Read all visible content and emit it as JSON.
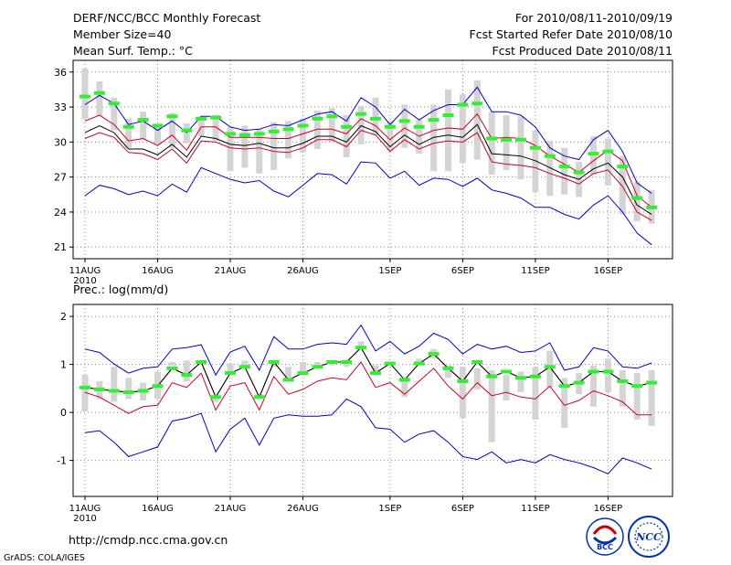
{
  "header": {
    "title_left": "DERF/NCC/BCC Monthly Forecast",
    "member_size": "Member Size=40",
    "variable_label": "Mean Surf. Temp.: °C",
    "period": "For 2010/08/11-2010/09/19",
    "started_refer": "Fcst Started Refer Date 2010/08/10",
    "produced": "Fcst Produced Date 2010/08/11"
  },
  "footer": {
    "url": "http://cmdp.ncc.cma.gov.cn",
    "grads_credit": "GrADS: COLA/IGES",
    "logo_bcc_text": "BCC",
    "logo_ncc_text": "NCC"
  },
  "colors": {
    "frame": "#000000",
    "grid": "#888888",
    "envelope": "#0000cc",
    "spread": "#cc0022",
    "mean": "#000000",
    "box": "#d4d4d4",
    "green": "#33ee33"
  },
  "chart_data": [
    {
      "type": "line",
      "id": "temp",
      "title": "Mean Surf. Temp.: °C",
      "categories": [
        "11AUG",
        "16AUG",
        "21AUG",
        "26AUG",
        "1SEP",
        "6SEP",
        "11SEP",
        "16SEP"
      ],
      "category_day_index": [
        0,
        5,
        10,
        15,
        21,
        26,
        31,
        36
      ],
      "first_label_year": "2010",
      "ylim": [
        20,
        37
      ],
      "yticks": [
        21,
        24,
        27,
        30,
        33,
        36
      ],
      "grid": true,
      "x": [
        0,
        1,
        2,
        3,
        4,
        5,
        6,
        7,
        8,
        9,
        10,
        11,
        12,
        13,
        14,
        15,
        16,
        17,
        18,
        19,
        20,
        21,
        22,
        23,
        24,
        25,
        26,
        27,
        28,
        29,
        30,
        31,
        32,
        33,
        34,
        35,
        36,
        37,
        38,
        39
      ],
      "series": [
        {
          "name": "max",
          "values": [
            33.2,
            34.0,
            33.3,
            31.5,
            31.8,
            31.0,
            31.8,
            30.8,
            32.2,
            32.2,
            31.3,
            31.0,
            31.1,
            31.5,
            31.4,
            31.9,
            32.4,
            32.6,
            31.8,
            33.8,
            33.0,
            31.5,
            32.8,
            31.9,
            32.7,
            33.2,
            33.2,
            34.7,
            32.6,
            32.6,
            32.3,
            31.3,
            29.5,
            28.8,
            28.5,
            30.2,
            31.0,
            29.2,
            26.5,
            25.6
          ]
        },
        {
          "name": "upper",
          "values": [
            31.8,
            32.3,
            31.5,
            30.1,
            30.3,
            29.7,
            30.6,
            29.3,
            31.3,
            31.3,
            30.4,
            30.4,
            30.4,
            30.3,
            30.3,
            30.7,
            31.1,
            31.1,
            30.7,
            32.0,
            31.4,
            30.2,
            31.2,
            30.5,
            31.0,
            31.2,
            31.1,
            32.4,
            30.3,
            30.4,
            30.3,
            29.7,
            28.8,
            28.1,
            27.4,
            28.4,
            29.3,
            28.4,
            25.4,
            24.4
          ]
        },
        {
          "name": "mean",
          "values": [
            30.8,
            31.4,
            30.8,
            29.4,
            29.4,
            28.9,
            29.8,
            28.7,
            30.5,
            30.3,
            29.8,
            29.7,
            29.9,
            29.5,
            29.5,
            29.9,
            30.5,
            30.5,
            30.0,
            31.4,
            30.9,
            29.6,
            30.6,
            29.8,
            30.4,
            30.6,
            30.4,
            31.5,
            29.0,
            28.9,
            28.8,
            28.4,
            27.8,
            27.2,
            26.8,
            27.7,
            28.2,
            27.0,
            24.6,
            23.8
          ]
        },
        {
          "name": "lower",
          "values": [
            30.3,
            30.8,
            30.4,
            29.1,
            29.0,
            28.5,
            29.4,
            28.2,
            30.1,
            30.0,
            29.5,
            29.4,
            29.5,
            29.2,
            29.1,
            29.5,
            30.2,
            30.2,
            29.6,
            31.0,
            30.6,
            29.2,
            30.2,
            29.4,
            29.9,
            30.1,
            30.0,
            30.8,
            28.3,
            28.1,
            28.0,
            27.8,
            27.3,
            26.9,
            26.4,
            27.3,
            27.6,
            26.2,
            24.0,
            23.3
          ]
        },
        {
          "name": "min",
          "values": [
            25.4,
            26.3,
            26.0,
            25.5,
            25.8,
            25.4,
            26.4,
            25.7,
            27.8,
            27.3,
            26.8,
            26.5,
            26.7,
            25.8,
            25.3,
            26.3,
            27.3,
            27.2,
            26.4,
            28.3,
            28.2,
            26.9,
            27.5,
            26.3,
            26.9,
            26.8,
            26.2,
            26.9,
            25.9,
            25.6,
            25.2,
            24.4,
            24.4,
            23.8,
            23.4,
            24.6,
            25.4,
            24.0,
            22.2,
            21.2
          ]
        }
      ],
      "boxes_low": [
        32.0,
        32.2,
        31.0,
        29.5,
        30.2,
        29.8,
        29.5,
        29.9,
        30.5,
        30.1,
        27.5,
        27.8,
        27.3,
        27.6,
        28.6,
        29.1,
        29.4,
        30.0,
        28.7,
        29.8,
        30.6,
        29.2,
        29.5,
        29.0,
        27.5,
        27.5,
        28.2,
        28.5,
        27.2,
        27.6,
        26.8,
        25.7,
        25.4,
        25.5,
        25.3,
        27.2,
        26.3,
        23.8,
        23.2,
        23.0
      ],
      "boxes_high": [
        36.3,
        35.2,
        33.8,
        32.0,
        32.6,
        31.3,
        32.5,
        31.6,
        32.2,
        32.3,
        31.3,
        31.4,
        31.1,
        31.7,
        31.8,
        32.0,
        32.7,
        32.9,
        32.3,
        33.1,
        33.8,
        31.8,
        33.2,
        31.9,
        33.2,
        34.5,
        34.1,
        35.3,
        32.6,
        32.3,
        32.2,
        31.0,
        30.1,
        29.5,
        28.3,
        30.5,
        30.3,
        28.8,
        26.6,
        25.9
      ],
      "observed": [
        33.9,
        34.2,
        33.3,
        31.3,
        31.9,
        31.4,
        32.2,
        31.0,
        32.0,
        32.1,
        30.7,
        30.6,
        30.7,
        30.9,
        31.1,
        31.4,
        32.0,
        32.2,
        31.3,
        32.4,
        32.0,
        31.3,
        31.8,
        31.3,
        31.9,
        32.3,
        33.2,
        33.3,
        30.3,
        30.2,
        30.2,
        29.5,
        28.8,
        27.9,
        27.4,
        29.0,
        29.2,
        27.9,
        25.2,
        24.4
      ]
    },
    {
      "type": "line",
      "id": "prec",
      "title": "Prec.: log(mm/d)",
      "categories": [
        "11AUG",
        "16AUG",
        "21AUG",
        "26AUG",
        "1SEP",
        "6SEP",
        "11SEP",
        "16SEP"
      ],
      "category_day_index": [
        0,
        5,
        10,
        15,
        21,
        26,
        31,
        36
      ],
      "first_label_year": "2010",
      "ylim": [
        -1.75,
        2.25
      ],
      "yticks": [
        -1,
        0,
        1,
        2
      ],
      "grid": true,
      "x": [
        0,
        1,
        2,
        3,
        4,
        5,
        6,
        7,
        8,
        9,
        10,
        11,
        12,
        13,
        14,
        15,
        16,
        17,
        18,
        19,
        20,
        21,
        22,
        23,
        24,
        25,
        26,
        27,
        28,
        29,
        30,
        31,
        32,
        33,
        34,
        35,
        36,
        37,
        38,
        39
      ],
      "series": [
        {
          "name": "max",
          "values": [
            1.32,
            1.25,
            1.01,
            0.82,
            0.92,
            0.95,
            1.32,
            1.35,
            1.41,
            0.78,
            1.26,
            1.38,
            0.88,
            1.58,
            1.32,
            1.32,
            1.42,
            1.45,
            1.42,
            1.82,
            1.28,
            1.48,
            1.22,
            1.38,
            1.65,
            1.52,
            1.22,
            1.42,
            1.32,
            1.38,
            1.25,
            1.28,
            1.45,
            0.88,
            0.95,
            1.35,
            1.28,
            0.95,
            0.92,
            1.03
          ]
        },
        {
          "name": "upper",
          "values": [
            0.52,
            0.48,
            0.45,
            0.42,
            0.45,
            0.55,
            0.92,
            0.78,
            1.05,
            0.32,
            0.82,
            0.95,
            0.32,
            1.05,
            0.68,
            0.82,
            0.95,
            1.05,
            1.05,
            1.35,
            0.82,
            1.02,
            0.68,
            1.02,
            1.22,
            0.92,
            0.65,
            1.05,
            0.75,
            0.85,
            0.72,
            0.75,
            0.95,
            0.55,
            0.62,
            0.85,
            0.85,
            0.65,
            0.55,
            0.62
          ]
        },
        {
          "name": "mean",
          "values": [
            0.52,
            0.48,
            0.45,
            0.42,
            0.45,
            0.55,
            0.92,
            0.78,
            1.05,
            0.32,
            0.82,
            0.95,
            0.32,
            1.05,
            0.68,
            0.82,
            0.95,
            1.05,
            1.05,
            1.35,
            0.82,
            1.02,
            0.68,
            1.02,
            1.22,
            0.92,
            0.65,
            1.05,
            0.75,
            0.85,
            0.72,
            0.75,
            0.95,
            0.55,
            0.62,
            0.85,
            0.85,
            0.65,
            0.55,
            0.62
          ]
        },
        {
          "name": "lower",
          "values": [
            0.42,
            0.32,
            0.15,
            -0.02,
            0.12,
            0.15,
            0.62,
            0.52,
            0.82,
            0.05,
            0.55,
            0.62,
            0.05,
            0.75,
            0.38,
            0.48,
            0.65,
            0.72,
            0.68,
            1.05,
            0.52,
            0.62,
            0.38,
            0.65,
            0.92,
            0.55,
            0.28,
            0.62,
            0.35,
            0.42,
            0.32,
            0.28,
            0.55,
            0.15,
            0.25,
            0.45,
            0.35,
            0.22,
            -0.05,
            -0.05
          ]
        },
        {
          "name": "min",
          "values": [
            -0.42,
            -0.38,
            -0.62,
            -0.92,
            -0.82,
            -0.72,
            -0.18,
            -0.12,
            -0.02,
            -0.82,
            -0.35,
            -0.12,
            -0.68,
            -0.12,
            -0.05,
            -0.08,
            -0.08,
            -0.05,
            0.28,
            0.12,
            -0.32,
            -0.35,
            -0.62,
            -0.45,
            -0.38,
            -0.62,
            -0.92,
            -0.98,
            -0.82,
            -1.05,
            -0.98,
            -1.05,
            -0.88,
            -0.98,
            -1.05,
            -1.15,
            -1.28,
            -0.95,
            -1.05,
            -1.18
          ]
        }
      ],
      "boxes_low": [
        0.02,
        0.28,
        0.22,
        0.28,
        0.25,
        0.28,
        0.98,
        0.65,
        1.02,
        0.22,
        0.82,
        0.92,
        0.28,
        0.95,
        0.72,
        0.82,
        0.92,
        0.98,
        0.95,
        1.38,
        0.78,
        0.98,
        0.32,
        0.98,
        1.12,
        0.72,
        -0.12,
        0.48,
        -0.62,
        0.25,
        0.42,
        -0.15,
        0.52,
        -0.32,
        0.38,
        0.12,
        0.42,
        0.12,
        -0.15,
        -0.28
      ],
      "boxes_high": [
        0.78,
        0.65,
        0.95,
        0.72,
        0.62,
        0.85,
        1.05,
        1.08,
        1.08,
        0.32,
        1.02,
        1.08,
        0.38,
        1.05,
        0.95,
        1.05,
        1.05,
        1.08,
        1.08,
        1.48,
        0.98,
        1.05,
        0.65,
        1.12,
        1.32,
        0.98,
        0.95,
        0.92,
        0.88,
        0.78,
        0.85,
        0.95,
        1.28,
        0.72,
        0.82,
        0.98,
        1.12,
        0.88,
        0.82,
        0.88
      ]
    }
  ]
}
